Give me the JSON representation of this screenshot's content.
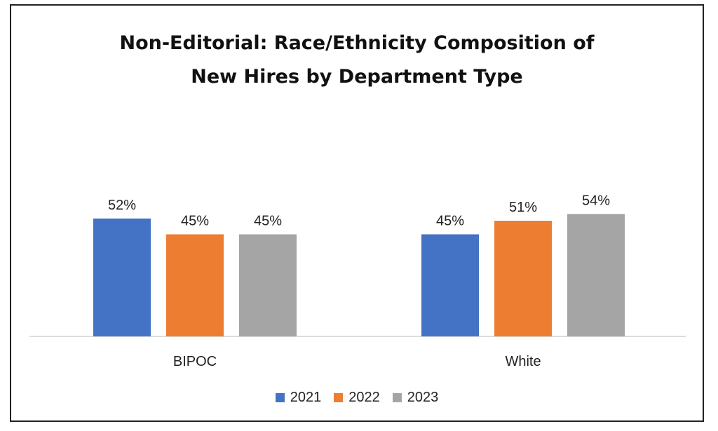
{
  "chart_data": {
    "type": "bar",
    "title_lines": [
      "Non-Editorial: Race/Ethnicity Composition of",
      "New Hires by Department Type"
    ],
    "categories": [
      "BIPOC",
      "White"
    ],
    "series": [
      {
        "name": "2021",
        "color": "#4472C4",
        "values": [
          52,
          45
        ],
        "labels": [
          "52%",
          "45%"
        ]
      },
      {
        "name": "2022",
        "color": "#ED7D31",
        "values": [
          45,
          51
        ],
        "labels": [
          "45%",
          "51%"
        ]
      },
      {
        "name": "2023",
        "color": "#A5A5A5",
        "values": [
          45,
          54
        ],
        "labels": [
          "45%",
          "54%"
        ]
      }
    ],
    "value_unit": "%",
    "ylim": [
      0,
      100
    ],
    "grid": false,
    "legend_position": "bottom"
  }
}
